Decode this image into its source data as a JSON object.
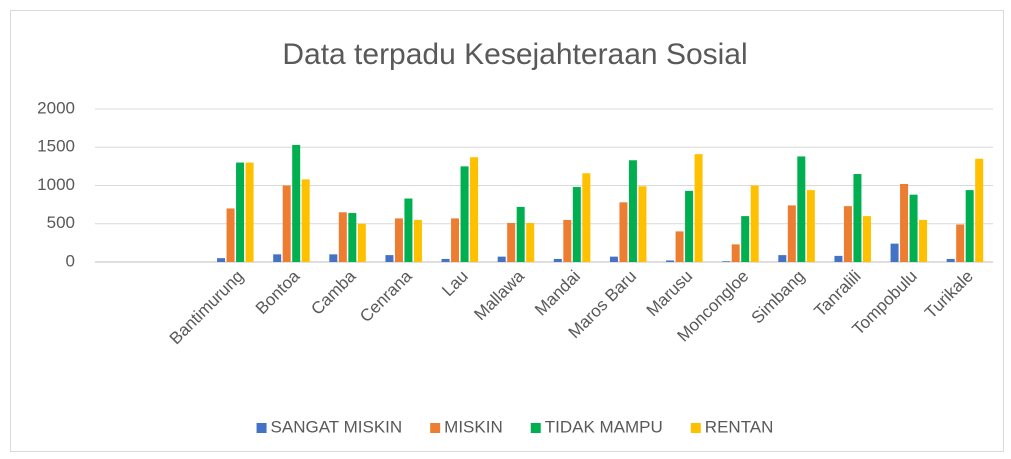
{
  "chart_data": {
    "type": "bar",
    "title": "Data terpadu Kesejahteraan Sosial",
    "categories": [
      null,
      null,
      "Bantimurung",
      "Bontoa",
      "Camba",
      "Cenrana",
      "Lau",
      "Mallawa",
      "Mandai",
      "Maros Baru",
      "Marusu",
      "Moncongloe",
      "Simbang",
      "Tanralili",
      "Tompobulu",
      "Turikale"
    ],
    "series": [
      {
        "name": "SANGAT MISKIN",
        "color": "#4472c4",
        "values": [
          null,
          null,
          50,
          100,
          100,
          90,
          40,
          70,
          40,
          70,
          20,
          10,
          90,
          80,
          240,
          40
        ]
      },
      {
        "name": "MISKIN",
        "color": "#ed7d31",
        "values": [
          null,
          null,
          700,
          1000,
          650,
          570,
          570,
          510,
          550,
          780,
          400,
          230,
          740,
          730,
          1020,
          490
        ]
      },
      {
        "name": "TIDAK MAMPU",
        "color": "#00b050",
        "values": [
          null,
          null,
          1300,
          1530,
          640,
          830,
          1250,
          720,
          980,
          1330,
          930,
          600,
          1380,
          1150,
          880,
          940
        ]
      },
      {
        "name": "RENTAN",
        "color": "#ffc000",
        "values": [
          null,
          null,
          1300,
          1080,
          500,
          550,
          1370,
          510,
          1160,
          990,
          1410,
          1000,
          940,
          600,
          550,
          1350
        ]
      }
    ],
    "ylim": [
      0,
      2000
    ],
    "yticks": [
      0,
      500,
      1000,
      1500,
      2000
    ],
    "grid": true,
    "legend": "bottom"
  }
}
